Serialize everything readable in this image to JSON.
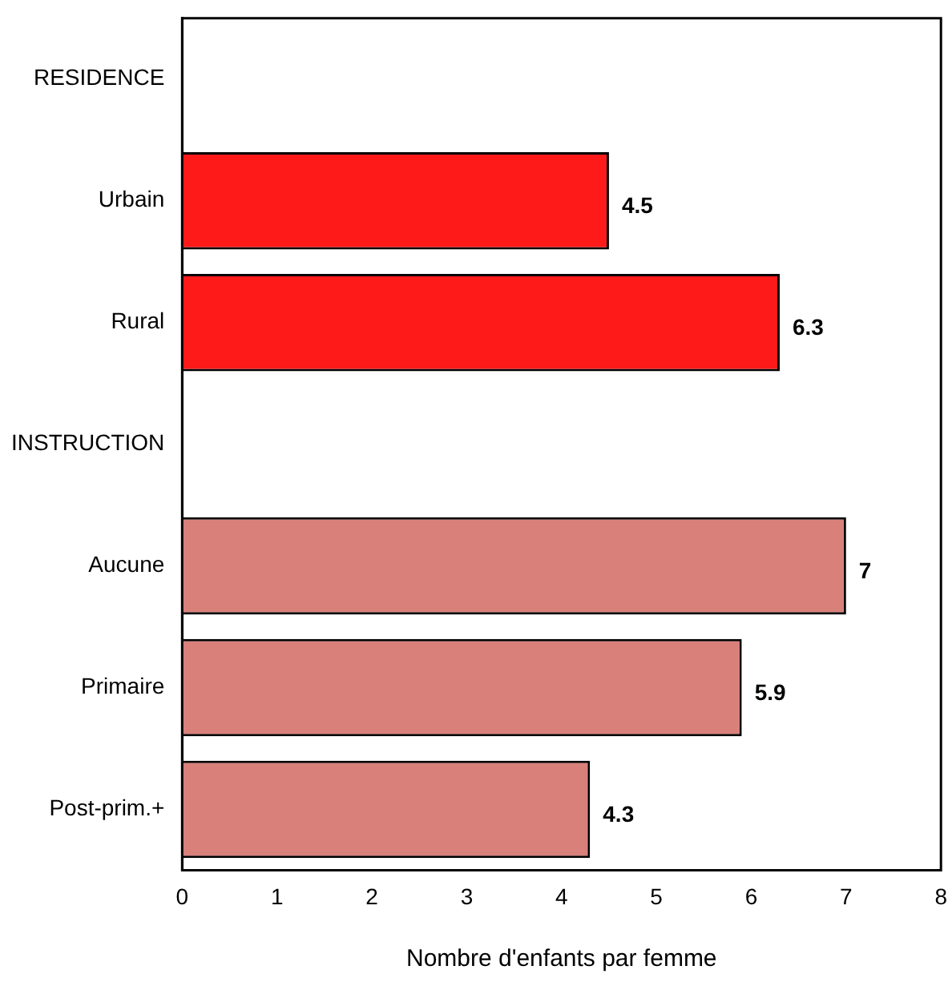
{
  "chart_data": {
    "type": "bar",
    "orientation": "horizontal",
    "xlabel": "Nombre d'enfants par femme",
    "categories": [
      "RESIDENCE",
      "Urbain",
      "Rural",
      "INSTRUCTION",
      "Aucune",
      "Primaire",
      "Post-prim.+"
    ],
    "values": [
      null,
      4.5,
      6.3,
      null,
      7,
      5.9,
      4.3
    ],
    "colors": [
      "#ff1a1a",
      "#ff1a1a",
      "#ff1a1a",
      "#d9807a",
      "#d9807a",
      "#d9807a",
      "#d9807a"
    ],
    "xlim": [
      0,
      8
    ],
    "xticks": [
      0,
      1,
      2,
      3,
      4,
      5,
      6,
      7,
      8
    ],
    "data_labels": true,
    "grid": false,
    "legend": false
  }
}
